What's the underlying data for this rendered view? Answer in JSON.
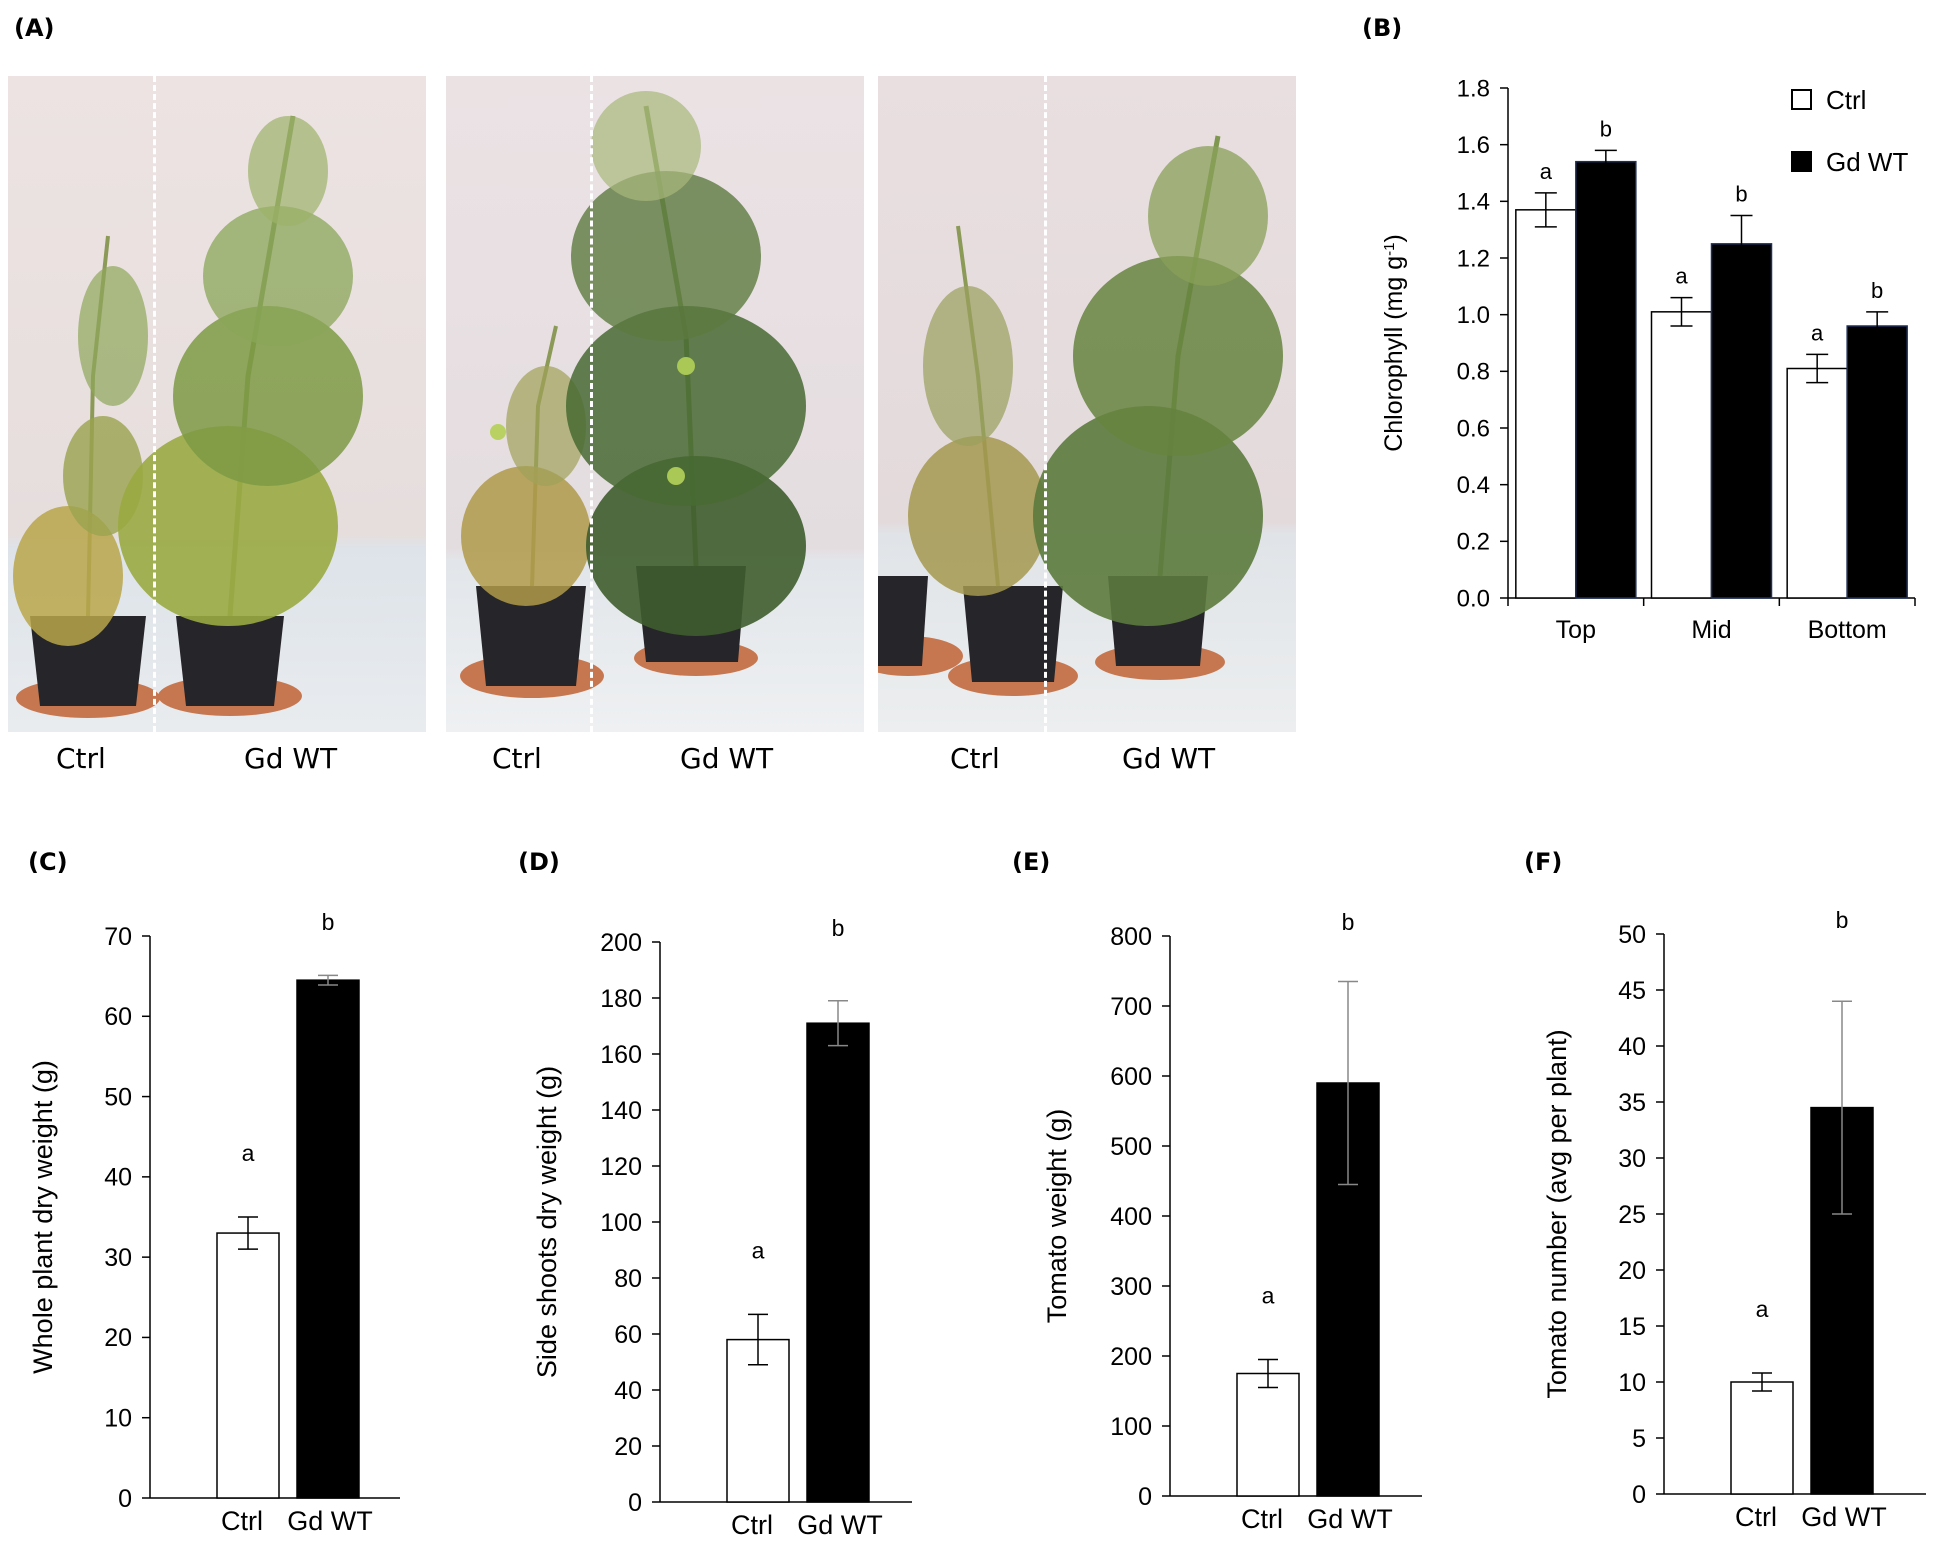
{
  "panels": {
    "a": "(A)",
    "b": "(B)",
    "c": "(C)",
    "d": "(D)",
    "e": "(E)",
    "f": "(F)"
  },
  "photos": [
    {
      "left_label": "Ctrl",
      "right_label": "Gd WT"
    },
    {
      "left_label": "Ctrl",
      "right_label": "Gd WT"
    },
    {
      "left_label": "Ctrl",
      "right_label": "Gd WT"
    }
  ],
  "colors": {
    "ctrl": "#ffffff",
    "gdwt": "#000000",
    "axis": "#000000"
  },
  "chart_data": [
    {
      "id": "B",
      "type": "bar",
      "ylabel": "Chlorophyll (mg g-1)",
      "ylim": [
        0,
        1.8
      ],
      "yticks": [
        "0.0",
        "0.2",
        "0.4",
        "0.6",
        "0.8",
        "1.0",
        "1.2",
        "1.4",
        "1.6",
        "1.8"
      ],
      "categories": [
        "Top",
        "Mid",
        "Bottom"
      ],
      "legend": "top-right",
      "series": [
        {
          "name": "Ctrl",
          "values": [
            1.37,
            1.01,
            0.81
          ],
          "errors": [
            0.06,
            0.05,
            0.05
          ],
          "letters": [
            "a",
            "a",
            "a"
          ]
        },
        {
          "name": "Gd WT",
          "values": [
            1.54,
            1.25,
            0.96
          ],
          "errors": [
            0.04,
            0.1,
            0.05
          ],
          "letters": [
            "b",
            "b",
            "b"
          ]
        }
      ]
    },
    {
      "id": "C",
      "type": "bar",
      "ylabel": "Whole plant dry weight (g)",
      "ylim": [
        0,
        70
      ],
      "yticks": [
        "0",
        "10",
        "20",
        "30",
        "40",
        "50",
        "60",
        "70"
      ],
      "categories": [
        "Ctrl",
        "Gd WT"
      ],
      "values": [
        33,
        64.5
      ],
      "errors": [
        2,
        0.6
      ],
      "letters": [
        "a",
        "b"
      ]
    },
    {
      "id": "D",
      "type": "bar",
      "ylabel": "Side shoots dry weight (g)",
      "ylim": [
        0,
        200
      ],
      "yticks": [
        "0",
        "20",
        "40",
        "60",
        "80",
        "100",
        "120",
        "140",
        "160",
        "180",
        "200"
      ],
      "categories": [
        "Ctrl",
        "Gd WT"
      ],
      "values": [
        58,
        171
      ],
      "errors": [
        9,
        8
      ],
      "letters": [
        "a",
        "b"
      ]
    },
    {
      "id": "E",
      "type": "bar",
      "ylabel": "Tomato weight (g)",
      "ylim": [
        0,
        800
      ],
      "yticks": [
        "0",
        "100",
        "200",
        "300",
        "400",
        "500",
        "600",
        "700",
        "800"
      ],
      "categories": [
        "Ctrl",
        "Gd WT"
      ],
      "values": [
        175,
        590
      ],
      "errors": [
        20,
        145
      ],
      "letters": [
        "a",
        "b"
      ]
    },
    {
      "id": "F",
      "type": "bar",
      "ylabel": "Tomato number (avg per plant)",
      "ylim": [
        0,
        50
      ],
      "yticks": [
        "0",
        "5",
        "10",
        "15",
        "20",
        "25",
        "30",
        "35",
        "40",
        "45",
        "50"
      ],
      "categories": [
        "Ctrl",
        "Gd WT"
      ],
      "values": [
        10,
        34.5
      ],
      "errors": [
        0.8,
        9.5
      ],
      "letters": [
        "a",
        "b"
      ]
    }
  ]
}
